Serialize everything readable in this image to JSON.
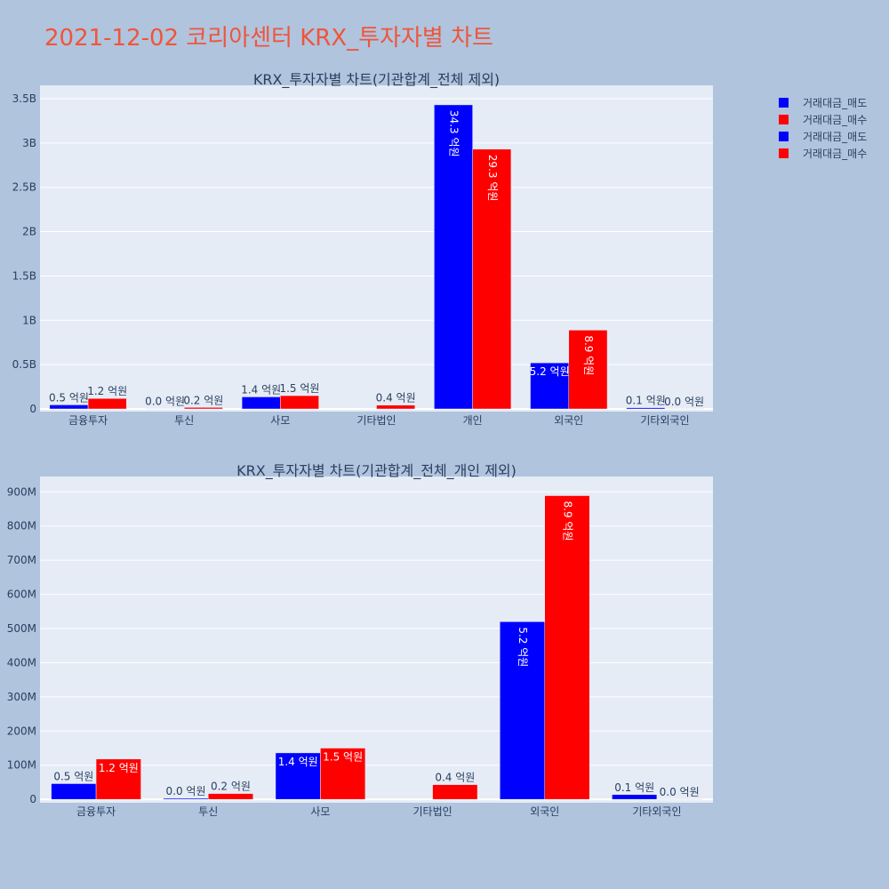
{
  "title": "2021-12-02 코리아센터 KRX_투자자별 차트",
  "legend": [
    {
      "label": "거래대금_매도",
      "color": "#0000ff"
    },
    {
      "label": "거래대금_매수",
      "color": "#ff0000"
    },
    {
      "label": "거래대금_매도",
      "color": "#0000ff"
    },
    {
      "label": "거래대금_매수",
      "color": "#ff0000"
    }
  ],
  "chart_data": [
    {
      "type": "bar",
      "title": "KRX_투자자별 차트(기관합계_전체 제외)",
      "categories": [
        "금융투자",
        "투신",
        "사모",
        "기타법인",
        "개인",
        "외국인",
        "기타외국인"
      ],
      "ylim": [
        -30000000,
        3650000000
      ],
      "yticks": [
        0,
        500000000,
        1000000000,
        1500000000,
        2000000000,
        2500000000,
        3000000000,
        3500000000
      ],
      "ytick_labels": [
        "0",
        "0.5B",
        "1B",
        "1.5B",
        "2B",
        "2.5B",
        "3B",
        "3.5B"
      ],
      "grid": true,
      "series": [
        {
          "name": "거래대금_매도",
          "color": "#0000ff",
          "values": [
            46000000,
            3000000,
            136000000,
            0,
            3430000000,
            520000000,
            14000000
          ],
          "labels": [
            "0.5 억원",
            "0.0 억원",
            "1.4 억원",
            "",
            "34.3 억원",
            "5.2 억원",
            "0.1 억원"
          ]
        },
        {
          "name": "거래대금_매수",
          "color": "#ff0000",
          "values": [
            118000000,
            17000000,
            150000000,
            43000000,
            2930000000,
            889000000,
            1000000
          ],
          "labels": [
            "1.2 억원",
            "0.2 억원",
            "1.5 억원",
            "0.4 억원",
            "29.3 억원",
            "8.9 억원",
            "0.0 억원"
          ]
        }
      ]
    },
    {
      "type": "bar",
      "title": "KRX_투자자별 차트(기관합계_전체_개인 제외)",
      "categories": [
        "금융투자",
        "투신",
        "사모",
        "기타법인",
        "외국인",
        "기타외국인"
      ],
      "ylim": [
        -10000000,
        945000000
      ],
      "yticks": [
        0,
        100000000,
        200000000,
        300000000,
        400000000,
        500000000,
        600000000,
        700000000,
        800000000,
        900000000
      ],
      "ytick_labels": [
        "0",
        "100M",
        "200M",
        "300M",
        "400M",
        "500M",
        "600M",
        "700M",
        "800M",
        "900M"
      ],
      "grid": true,
      "series": [
        {
          "name": "거래대금_매도",
          "color": "#0000ff",
          "values": [
            46000000,
            3000000,
            136000000,
            0,
            520000000,
            14000000
          ],
          "labels": [
            "0.5 억원",
            "0.0 억원",
            "1.4 억원",
            "",
            "5.2 억원",
            "0.1 억원"
          ]
        },
        {
          "name": "거래대금_매수",
          "color": "#ff0000",
          "values": [
            118000000,
            17000000,
            150000000,
            43000000,
            889000000,
            1000000
          ],
          "labels": [
            "1.2 억원",
            "0.2 억원",
            "1.5 억원",
            "0.4 억원",
            "8.9 억원",
            "0.0 억원"
          ]
        }
      ]
    }
  ]
}
